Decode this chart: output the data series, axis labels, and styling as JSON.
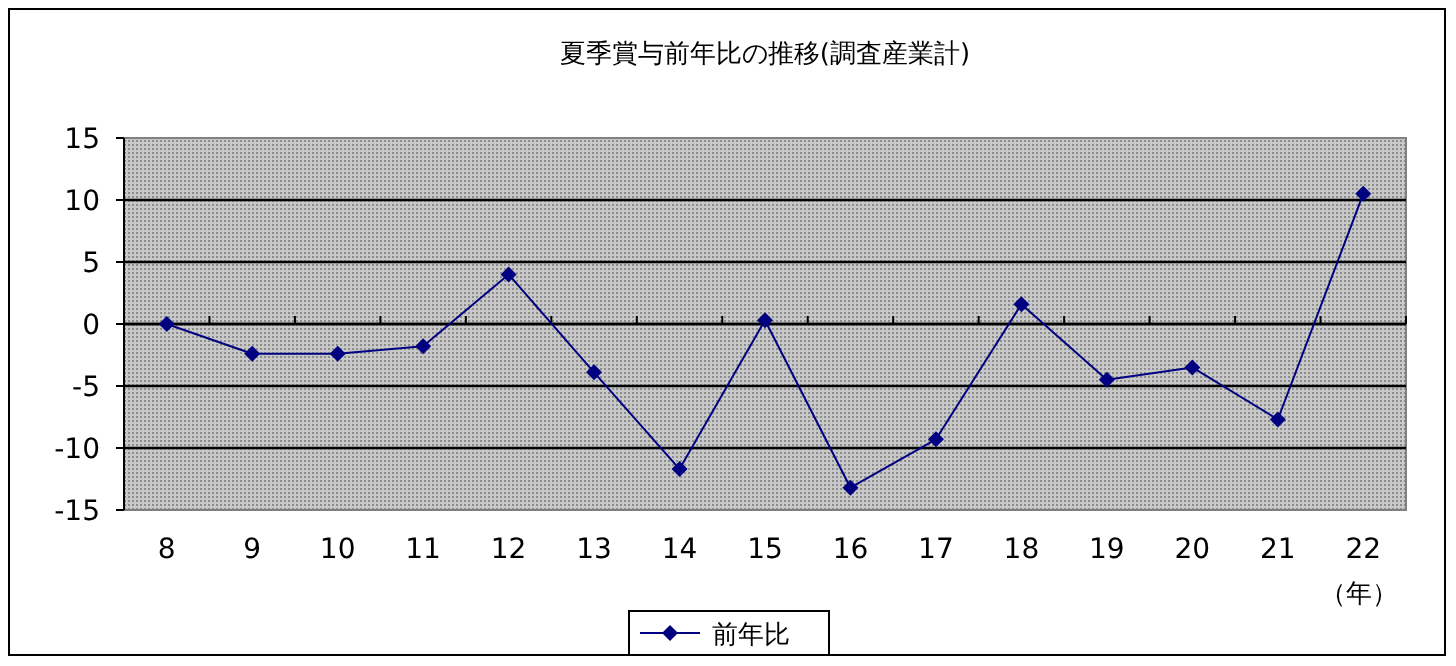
{
  "chart_data": {
    "type": "line",
    "title": "夏季賞与前年比の推移(調査産業計)",
    "categories": [
      "8",
      "9",
      "10",
      "11",
      "12",
      "13",
      "14",
      "15",
      "16",
      "17",
      "18",
      "19",
      "20",
      "21",
      "22"
    ],
    "series": [
      {
        "name": "前年比",
        "color": "#000080",
        "values": [
          0,
          -2.4,
          -2.4,
          -1.8,
          4.0,
          -3.9,
          -11.7,
          0.3,
          -13.2,
          -9.3,
          1.6,
          -4.5,
          -3.5,
          -7.7,
          10.5
        ]
      }
    ],
    "ylim": [
      -15,
      15
    ],
    "yticks": [
      -15,
      -10,
      -5,
      0,
      5,
      10,
      15
    ],
    "grid": "y",
    "legend": "bottom",
    "marker": "diamond",
    "line_style": "solid",
    "annotations": [
      "（年）"
    ]
  }
}
